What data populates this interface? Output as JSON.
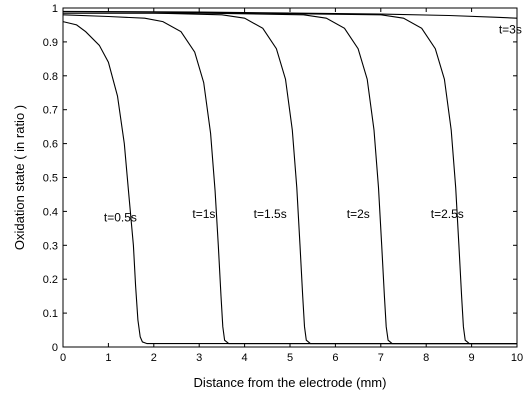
{
  "chart_data": {
    "type": "line",
    "title": "",
    "xlabel": "Distance from the electrode (mm)",
    "ylabel": "Oxidation state ( in ratio )",
    "xlim": [
      0,
      10
    ],
    "ylim": [
      0,
      1
    ],
    "xticks": [
      "0",
      "1",
      "2",
      "3",
      "4",
      "5",
      "6",
      "7",
      "8",
      "9",
      "10"
    ],
    "yticks": [
      "0",
      "0.1",
      "0.2",
      "0.3",
      "0.4",
      "0.5",
      "0.6",
      "0.7",
      "0.8",
      "0.9",
      "1"
    ],
    "grid": false,
    "legend": "none",
    "series": [
      {
        "name": "t=0.5s",
        "x": [
          0,
          0.3,
          0.5,
          0.8,
          1.0,
          1.2,
          1.35,
          1.45,
          1.55,
          1.6,
          1.65,
          1.7,
          1.75,
          1.85,
          2.5,
          5,
          10
        ],
        "y": [
          0.96,
          0.95,
          0.93,
          0.89,
          0.84,
          0.74,
          0.6,
          0.45,
          0.3,
          0.18,
          0.08,
          0.03,
          0.015,
          0.01,
          0.01,
          0.01,
          0.01
        ]
      },
      {
        "name": "t=1s",
        "x": [
          0,
          1.0,
          1.8,
          2.2,
          2.6,
          2.9,
          3.1,
          3.25,
          3.35,
          3.42,
          3.48,
          3.52,
          3.56,
          3.65,
          4.5,
          10
        ],
        "y": [
          0.98,
          0.975,
          0.97,
          0.96,
          0.93,
          0.87,
          0.78,
          0.63,
          0.46,
          0.3,
          0.15,
          0.06,
          0.02,
          0.01,
          0.01,
          0.01
        ]
      },
      {
        "name": "t=1.5s",
        "x": [
          0,
          2.0,
          3.5,
          4.0,
          4.4,
          4.7,
          4.9,
          5.05,
          5.15,
          5.22,
          5.28,
          5.32,
          5.36,
          5.45,
          6.5,
          10
        ],
        "y": [
          0.985,
          0.985,
          0.98,
          0.97,
          0.94,
          0.88,
          0.79,
          0.64,
          0.47,
          0.3,
          0.15,
          0.06,
          0.02,
          0.01,
          0.01,
          0.01
        ]
      },
      {
        "name": "t=2s",
        "x": [
          0,
          3.0,
          5.3,
          5.8,
          6.2,
          6.5,
          6.7,
          6.85,
          6.95,
          7.02,
          7.08,
          7.12,
          7.16,
          7.25,
          8.0,
          10
        ],
        "y": [
          0.985,
          0.985,
          0.98,
          0.97,
          0.94,
          0.88,
          0.79,
          0.64,
          0.47,
          0.3,
          0.15,
          0.06,
          0.02,
          0.01,
          0.01,
          0.01
        ]
      },
      {
        "name": "t=2.5s",
        "x": [
          0,
          4.0,
          7.0,
          7.5,
          7.9,
          8.2,
          8.4,
          8.55,
          8.65,
          8.72,
          8.78,
          8.82,
          8.86,
          8.95,
          9.5,
          10
        ],
        "y": [
          0.985,
          0.985,
          0.98,
          0.97,
          0.94,
          0.88,
          0.79,
          0.64,
          0.47,
          0.3,
          0.15,
          0.06,
          0.02,
          0.01,
          0.01,
          0.01
        ]
      },
      {
        "name": "t=3s",
        "x": [
          0,
          3,
          5,
          7,
          8.5,
          9.5,
          10
        ],
        "y": [
          0.99,
          0.988,
          0.985,
          0.982,
          0.978,
          0.973,
          0.97
        ]
      }
    ],
    "annotations": [
      {
        "text": "t=0.5s",
        "x": 0.9,
        "y": 0.37
      },
      {
        "text": "t=1s",
        "x": 2.85,
        "y": 0.38
      },
      {
        "text": "t=1.5s",
        "x": 4.2,
        "y": 0.38
      },
      {
        "text": "t=2s",
        "x": 6.25,
        "y": 0.38
      },
      {
        "text": "t=2.5s",
        "x": 8.1,
        "y": 0.38
      },
      {
        "text": "t=3s",
        "x": 9.6,
        "y": 0.925
      }
    ]
  }
}
